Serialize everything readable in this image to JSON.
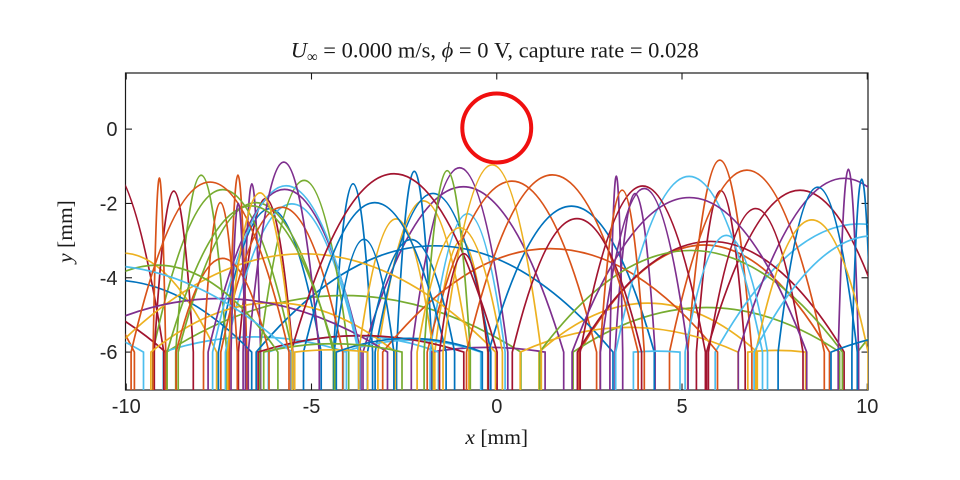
{
  "chart_data": {
    "type": "line",
    "title": "U∞ = 0.000 m/s,  ϕ = 0 V,  capture rate = 0.028",
    "title_segments": [
      {
        "text": "U",
        "italic": true
      },
      {
        "text": "∞",
        "subscript": true
      },
      {
        "text": " = 0.000 m/s, ",
        "italic": false
      },
      {
        "text": " ϕ",
        "italic": true
      },
      {
        "text": " = 0 V,  capture rate = 0.028",
        "italic": false
      }
    ],
    "xlabel": "x [mm]",
    "xlabel_segments": [
      {
        "text": "x",
        "italic": true
      },
      {
        "text": " [mm]",
        "italic": false
      }
    ],
    "ylabel": "y [mm]",
    "ylabel_segments": [
      {
        "text": "y",
        "italic": true
      },
      {
        "text": " [mm]",
        "italic": false
      }
    ],
    "xlim": [
      -10.02,
      10.02
    ],
    "ylim": [
      -7.02,
      1.51
    ],
    "xticks": [
      -10,
      -5,
      0,
      5,
      10
    ],
    "xtick_labels": [
      "-10",
      "-5",
      "0",
      "5",
      "10"
    ],
    "yticks": [
      0,
      -2,
      -4,
      -6
    ],
    "ytick_labels": [
      "0",
      "-2",
      "-4",
      "-6"
    ],
    "grid": false,
    "legend": null,
    "axis_color": "#1a1a1a",
    "tick_label_color": "#262626",
    "background": "#ffffff",
    "obstacle_circle": {
      "cx_mm": 0.0,
      "cy_mm": 0.03,
      "r_mm": 0.93,
      "color": "#f00f0f",
      "stroke_width": 4
    },
    "trajectories": {
      "description": "random particle trajectories launched vertically from bottom, parabolic arcs between y=-6 mm and apex ceiling y=-0.72 mm",
      "count": 95,
      "seed": 12,
      "palette": [
        "#0072BD",
        "#D95319",
        "#EDB120",
        "#7E2F8E",
        "#77AC30",
        "#4DBEEE",
        "#A2142F"
      ],
      "line_width": 1.7,
      "arc_base_y_mm": -6,
      "launch_floor_y_mm": -7.2,
      "max_rise_mm": 5.28,
      "rise_min_frac": 0.5,
      "rise_bias_exp": 0.6,
      "hairpin_fraction": 0.55,
      "hairpin_angle_deg": [
        1,
        18
      ],
      "wide_angle_deg": [
        20,
        88
      ],
      "launch_x_range_mm": [
        -10.4,
        10.4
      ]
    }
  }
}
